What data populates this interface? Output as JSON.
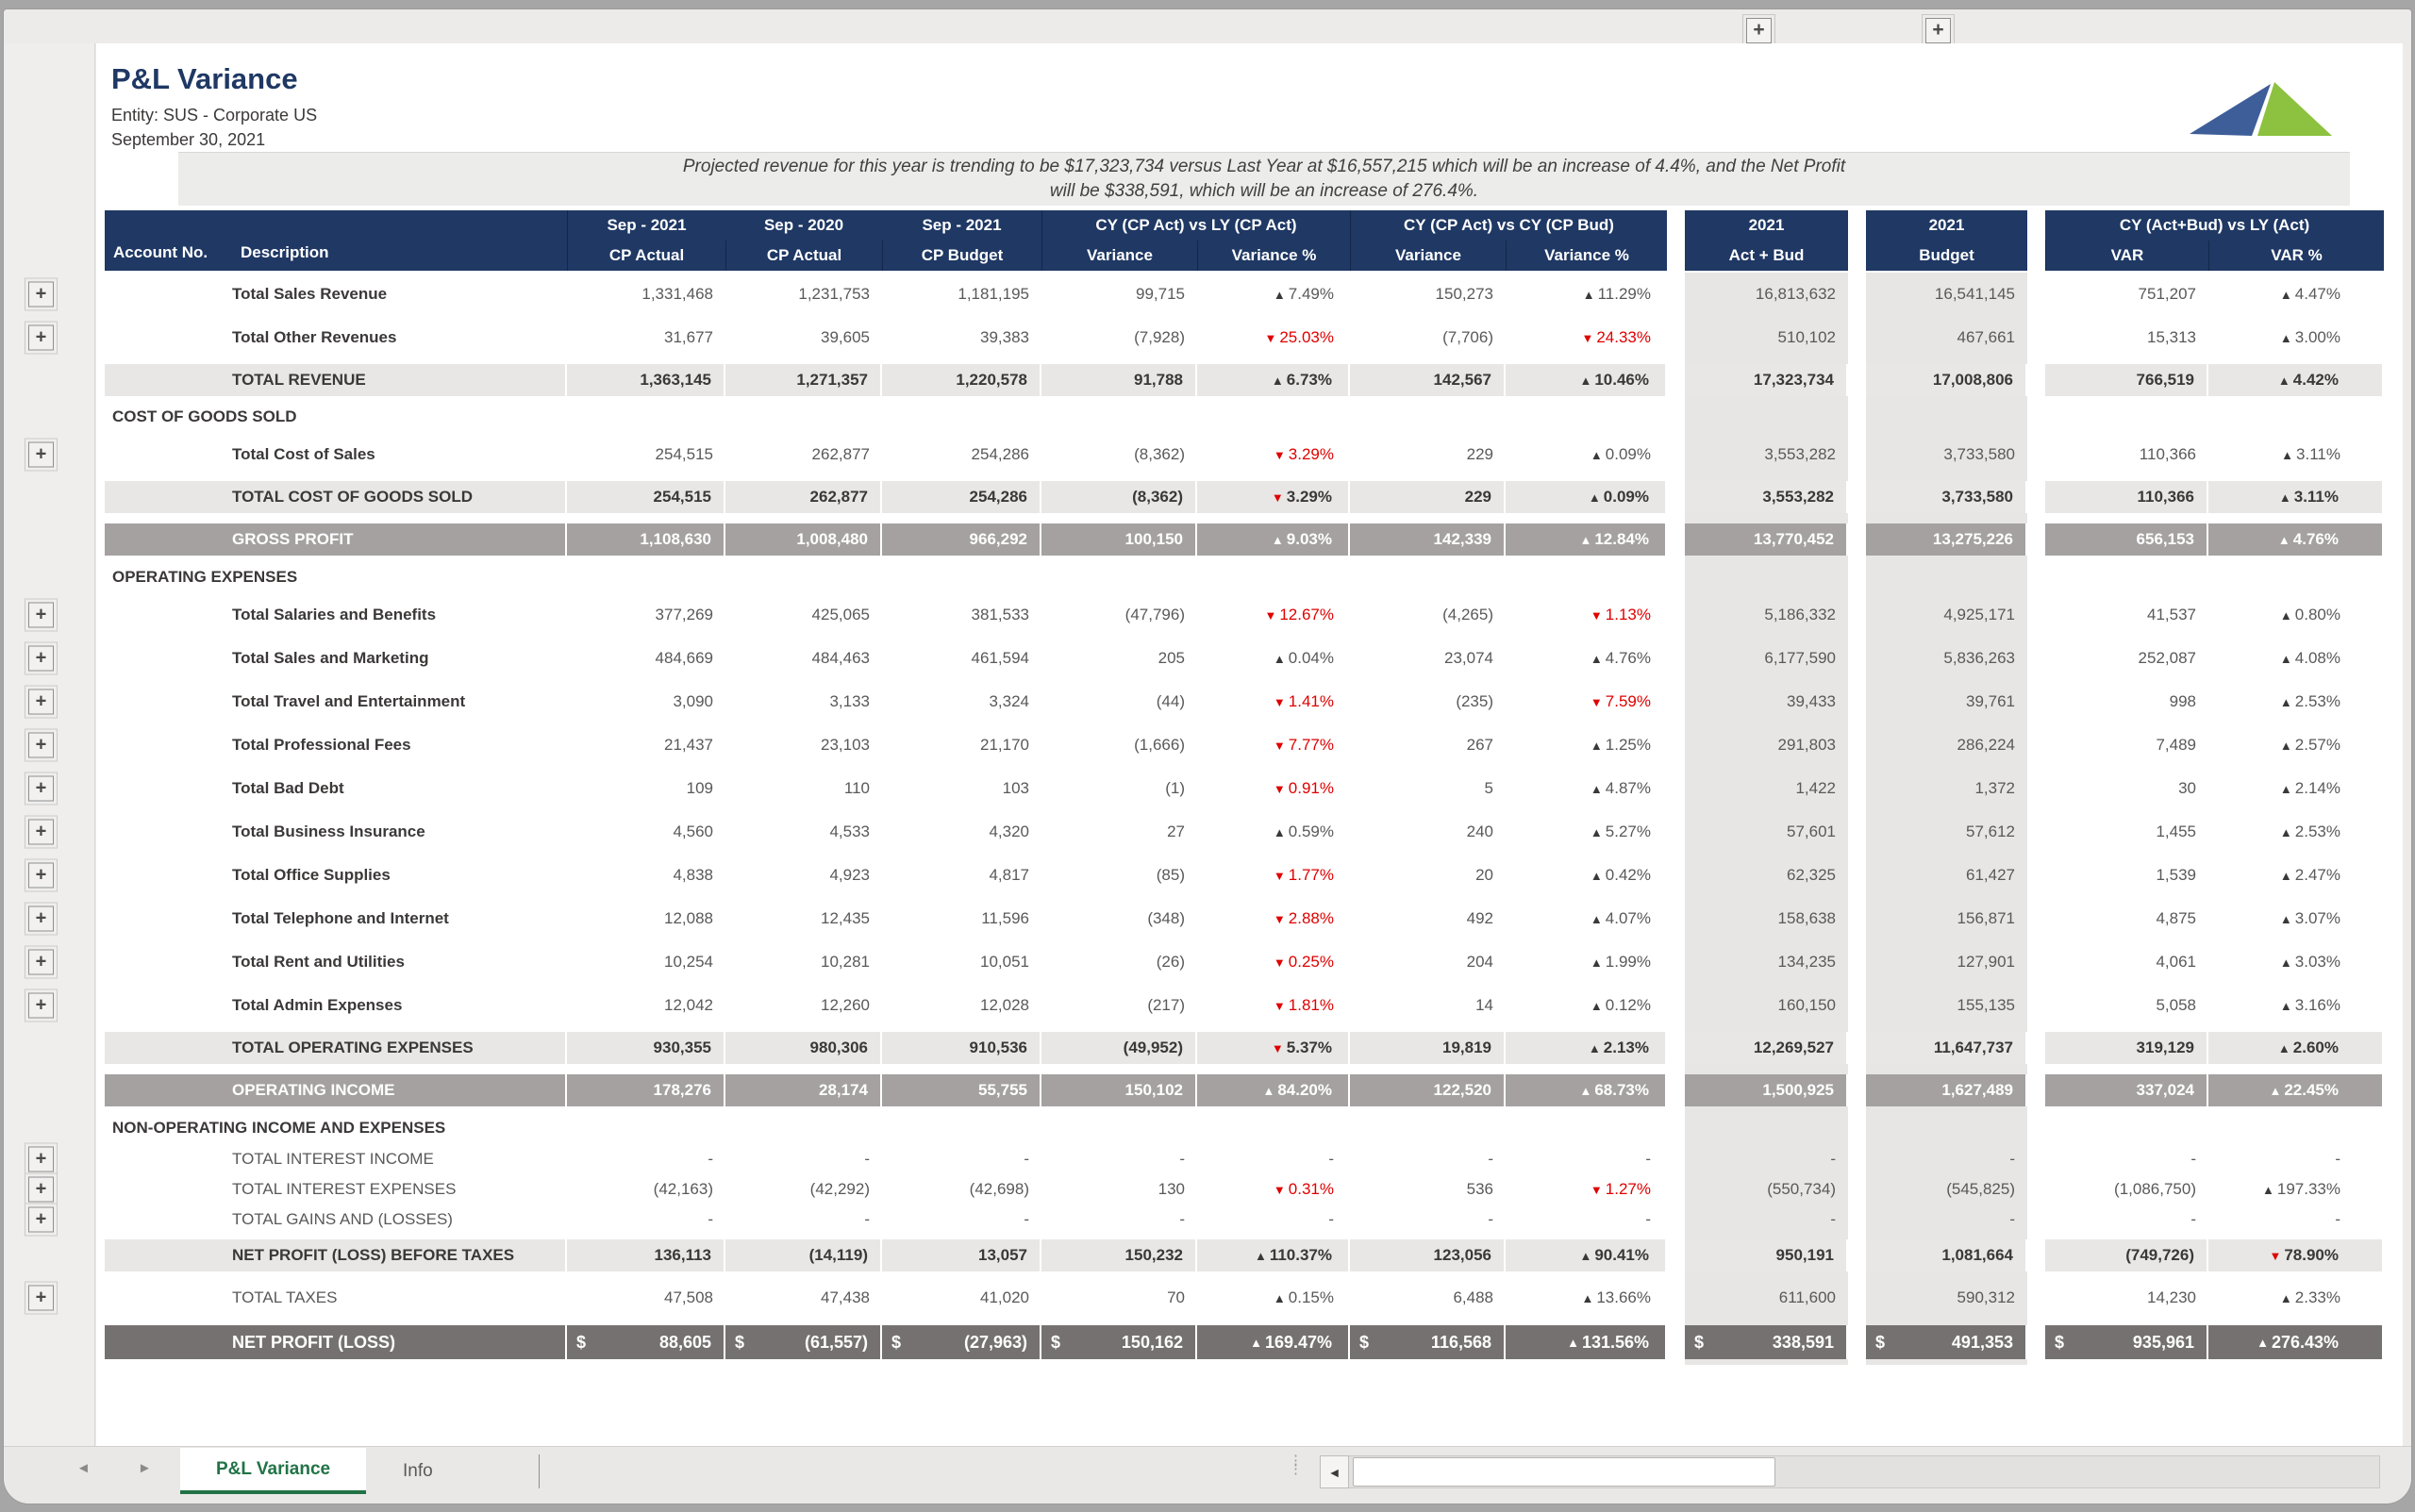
{
  "theme": {
    "navy": "#1F3864",
    "red": "#DF0000",
    "band": "#E8E7E5",
    "shade": "#E7E6E4",
    "grand": "#A5A1A1",
    "net": "#767171",
    "green": "#217346",
    "logo_blue": "#3E5E99",
    "logo_green": "#8CC23F"
  },
  "header": {
    "title": "P&L Variance",
    "entity": "Entity: SUS - Corporate US",
    "date": "September 30, 2021",
    "note_line1": "Projected revenue for this year is trending to be $17,323,734 versus Last Year at $16,557,215 which will be  an increase of 4.4%, and the Net Profit",
    "note_line2": "will be $338,591, which will be an increase of 276.4%."
  },
  "controls": {
    "expand_glyph": "+",
    "collapse_columns_glyph": "+"
  },
  "table": {
    "header": {
      "account": "Account No.",
      "description": "Description",
      "periods": [
        "Sep - 2021",
        "Sep - 2020",
        "Sep - 2021"
      ],
      "period_labels": [
        "CP Actual",
        "CP Actual",
        "CP Budget"
      ],
      "group_ly": {
        "title": "CY (CP Act) vs LY (CP Act)",
        "cols": [
          "Variance",
          "Variance %"
        ]
      },
      "group_bud": {
        "title": "CY (CP Act) vs CY (CP Bud)",
        "cols": [
          "Variance",
          "Variance %"
        ]
      },
      "actbud": {
        "line1": "2021",
        "line2": "Act + Bud"
      },
      "budget": {
        "line1": "2021",
        "line2": "Budget"
      },
      "group_cy": {
        "title": "CY (Act+Bud) vs LY (Act)",
        "cols": [
          "VAR",
          "VAR %"
        ]
      }
    },
    "rows": [
      {
        "type": "detail",
        "expander": true,
        "label": "Total Sales Revenue",
        "cells": [
          "1,331,468",
          "1,231,753",
          "1,181,195",
          "99,715",
          "▲7.49%",
          "150,273",
          "▲11.29%",
          "16,813,632",
          "16,541,145",
          "751,207",
          "▲4.47%"
        ]
      },
      {
        "type": "detail",
        "expander": true,
        "label": "Total Other Revenues",
        "cells": [
          "31,677",
          "39,605",
          "39,383",
          "(7,928)",
          "▼25.03%",
          "(7,706)",
          "▼24.33%",
          "510,102",
          "467,661",
          "15,313",
          "▲3.00%"
        ]
      },
      {
        "type": "subtotal",
        "label": "TOTAL REVENUE",
        "cells": [
          "1,363,145",
          "1,271,357",
          "1,220,578",
          "91,788",
          "▲6.73%",
          "142,567",
          "▲10.46%",
          "17,323,734",
          "17,008,806",
          "766,519",
          "▲4.42%"
        ]
      },
      {
        "type": "section",
        "label": "COST OF GOODS SOLD"
      },
      {
        "type": "detail",
        "expander": true,
        "label": "Total Cost of Sales",
        "cells": [
          "254,515",
          "262,877",
          "254,286",
          "(8,362)",
          "▼3.29%",
          "229",
          "▲0.09%",
          "3,553,282",
          "3,733,580",
          "110,366",
          "▲3.11%"
        ]
      },
      {
        "type": "subtotal",
        "label": "TOTAL COST OF GOODS SOLD",
        "cells": [
          "254,515",
          "262,877",
          "254,286",
          "(8,362)",
          "▼3.29%",
          "229",
          "▲0.09%",
          "3,553,282",
          "3,733,580",
          "110,366",
          "▲3.11%"
        ]
      },
      {
        "type": "grand",
        "label": "GROSS PROFIT",
        "cells": [
          "1,108,630",
          "1,008,480",
          "966,292",
          "100,150",
          "▲9.03%",
          "142,339",
          "▲12.84%",
          "13,770,452",
          "13,275,226",
          "656,153",
          "▲4.76%"
        ]
      },
      {
        "type": "section",
        "label": "OPERATING EXPENSES"
      },
      {
        "type": "detail",
        "expander": true,
        "label": "Total Salaries and Benefits",
        "cells": [
          "377,269",
          "425,065",
          "381,533",
          "(47,796)",
          "▼12.67%",
          "(4,265)",
          "▼1.13%",
          "5,186,332",
          "4,925,171",
          "41,537",
          "▲0.80%"
        ]
      },
      {
        "type": "detail",
        "expander": true,
        "label": "Total Sales and Marketing",
        "cells": [
          "484,669",
          "484,463",
          "461,594",
          "205",
          "▲0.04%",
          "23,074",
          "▲4.76%",
          "6,177,590",
          "5,836,263",
          "252,087",
          "▲4.08%"
        ]
      },
      {
        "type": "detail",
        "expander": true,
        "label": "Total Travel and Entertainment",
        "cells": [
          "3,090",
          "3,133",
          "3,324",
          "(44)",
          "▼1.41%",
          "(235)",
          "▼7.59%",
          "39,433",
          "39,761",
          "998",
          "▲2.53%"
        ]
      },
      {
        "type": "detail",
        "expander": true,
        "label": "Total Professional Fees",
        "cells": [
          "21,437",
          "23,103",
          "21,170",
          "(1,666)",
          "▼7.77%",
          "267",
          "▲1.25%",
          "291,803",
          "286,224",
          "7,489",
          "▲2.57%"
        ]
      },
      {
        "type": "detail",
        "expander": true,
        "label": "Total Bad Debt",
        "cells": [
          "109",
          "110",
          "103",
          "(1)",
          "▼0.91%",
          "5",
          "▲4.87%",
          "1,422",
          "1,372",
          "30",
          "▲2.14%"
        ]
      },
      {
        "type": "detail",
        "expander": true,
        "label": "Total Business Insurance",
        "cells": [
          "4,560",
          "4,533",
          "4,320",
          "27",
          "▲0.59%",
          "240",
          "▲5.27%",
          "57,601",
          "57,612",
          "1,455",
          "▲2.53%"
        ]
      },
      {
        "type": "detail",
        "expander": true,
        "label": "Total Office Supplies",
        "cells": [
          "4,838",
          "4,923",
          "4,817",
          "(85)",
          "▼1.77%",
          "20",
          "▲0.42%",
          "62,325",
          "61,427",
          "1,539",
          "▲2.47%"
        ]
      },
      {
        "type": "detail",
        "expander": true,
        "label": "Total Telephone and Internet",
        "cells": [
          "12,088",
          "12,435",
          "11,596",
          "(348)",
          "▼2.88%",
          "492",
          "▲4.07%",
          "158,638",
          "156,871",
          "4,875",
          "▲3.07%"
        ]
      },
      {
        "type": "detail",
        "expander": true,
        "label": "Total Rent and Utilities",
        "cells": [
          "10,254",
          "10,281",
          "10,051",
          "(26)",
          "▼0.25%",
          "204",
          "▲1.99%",
          "134,235",
          "127,901",
          "4,061",
          "▲3.03%"
        ]
      },
      {
        "type": "detail",
        "expander": true,
        "label": "Total Admin Expenses",
        "cells": [
          "12,042",
          "12,260",
          "12,028",
          "(217)",
          "▼1.81%",
          "14",
          "▲0.12%",
          "160,150",
          "155,135",
          "5,058",
          "▲3.16%"
        ]
      },
      {
        "type": "subtotal",
        "label": "TOTAL OPERATING EXPENSES",
        "cells": [
          "930,355",
          "980,306",
          "910,536",
          "(49,952)",
          "▼5.37%",
          "19,819",
          "▲2.13%",
          "12,269,527",
          "11,647,737",
          "319,129",
          "▲2.60%"
        ]
      },
      {
        "type": "grand",
        "label": "OPERATING INCOME",
        "cells": [
          "178,276",
          "28,174",
          "55,755",
          "150,102",
          "▲84.20%",
          "122,520",
          "▲68.73%",
          "1,500,925",
          "1,627,489",
          "337,024",
          "▲22.45%"
        ]
      },
      {
        "type": "section",
        "label": "NON-OPERATING INCOME AND EXPENSES"
      },
      {
        "type": "caps",
        "expander": true,
        "label": "TOTAL INTEREST INCOME",
        "cells": [
          "-",
          "-",
          "-",
          "-",
          "-",
          "-",
          "-",
          "-",
          "-",
          "-",
          "-"
        ]
      },
      {
        "type": "caps",
        "expander": true,
        "label": "TOTAL INTEREST EXPENSES",
        "cells": [
          "(42,163)",
          "(42,292)",
          "(42,698)",
          "130",
          "▼0.31%",
          "536",
          "▼1.27%",
          "(550,734)",
          "(545,825)",
          "(1,086,750)",
          "▲197.33%"
        ]
      },
      {
        "type": "caps",
        "expander": true,
        "label": "TOTAL GAINS AND (LOSSES)",
        "cells": [
          "-",
          "-",
          "-",
          "-",
          "-",
          "-",
          "-",
          "-",
          "-",
          "-",
          "-"
        ]
      },
      {
        "type": "subtotal",
        "label": "NET PROFIT (LOSS) BEFORE TAXES",
        "cells": [
          "136,113",
          "(14,119)",
          "13,057",
          "150,232",
          "▲110.37%",
          "123,056",
          "▲90.41%",
          "950,191",
          "1,081,664",
          "(749,726)",
          "▼78.90%"
        ]
      },
      {
        "type": "capsdetail",
        "expander": true,
        "label": "TOTAL TAXES",
        "cells": [
          "47,508",
          "47,438",
          "41,020",
          "70",
          "▲0.15%",
          "6,488",
          "▲13.66%",
          "611,600",
          "590,312",
          "14,230",
          "▲2.33%"
        ]
      },
      {
        "type": "net",
        "label": "NET PROFIT (LOSS)",
        "cells": [
          "$ 88,605",
          "$ (61,557)",
          "$ (27,963)",
          "$ 150,162",
          "▲169.47%",
          "$ 116,568",
          "▲131.56%",
          "$ 338,591",
          "$ 491,353",
          "$ 935,961",
          "▲276.43%"
        ]
      }
    ]
  },
  "tabbar": {
    "nav_left": "◄",
    "nav_right": "►",
    "tabs": [
      {
        "label": "P&L Variance",
        "active": true
      },
      {
        "label": "Info",
        "active": false
      }
    ],
    "scroll_left_glyph": "◄",
    "splitter_glyph": "⋮"
  }
}
